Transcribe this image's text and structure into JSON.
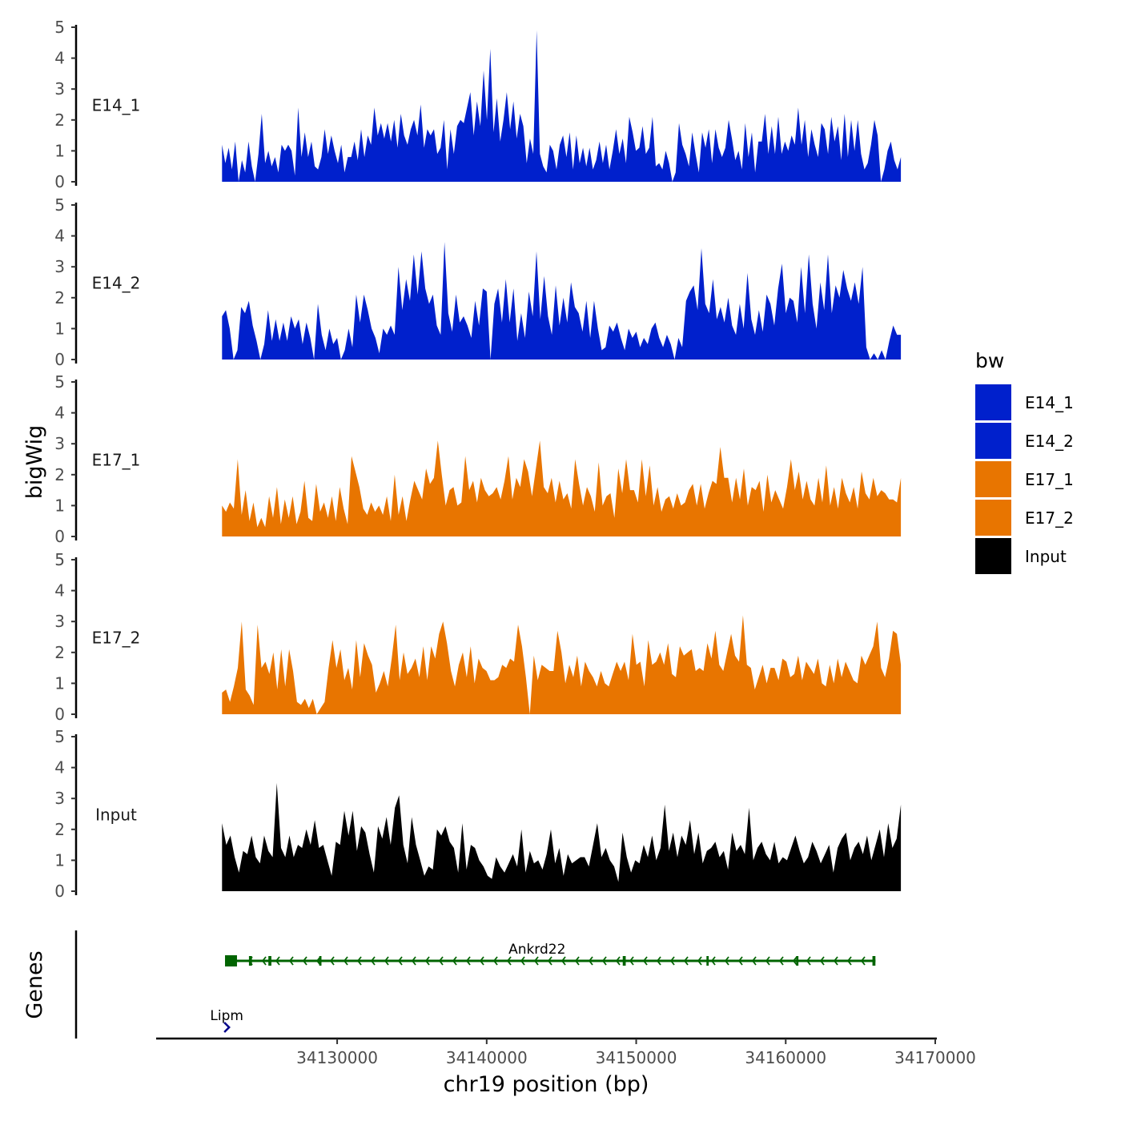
{
  "chart_data": {
    "type": "area",
    "title": "",
    "ylabel": "bigWig",
    "xlabel": "chr19 position (bp)",
    "xlim": [
      34118000,
      34170000
    ],
    "x_ticks": [
      34130000,
      34140000,
      34150000,
      34160000,
      34170000
    ],
    "x_tick_labels": [
      "34130000",
      "34140000",
      "34150000",
      "34160000",
      "34170000"
    ],
    "ylim": [
      0,
      5
    ],
    "y_ticks": [
      0,
      1,
      2,
      3,
      4,
      5
    ],
    "y_tick_labels": [
      "0",
      "1",
      "2",
      "3",
      "4",
      "5"
    ],
    "x_start": 34122300,
    "x_end": 34167700,
    "legend_title": "bw",
    "legend": [
      {
        "label": "E14_1",
        "color": "#0020CC"
      },
      {
        "label": "E14_2",
        "color": "#0020CC"
      },
      {
        "label": "E17_1",
        "color": "#E87500"
      },
      {
        "label": "E17_2",
        "color": "#E87500"
      },
      {
        "label": "Input",
        "color": "#000000"
      }
    ],
    "series": [
      {
        "name": "E14_1",
        "color": "#0020CC",
        "values": [
          1.2,
          0.6,
          1.1,
          0.4,
          1.3,
          0.0,
          0.7,
          0.3,
          1.3,
          0.5,
          0.0,
          0.9,
          2.2,
          0.6,
          1.0,
          0.5,
          0.8,
          0.3,
          1.2,
          1.0,
          1.2,
          1.0,
          0.2,
          2.4,
          0.8,
          1.6,
          0.8,
          1.3,
          0.5,
          0.4,
          0.8,
          1.7,
          0.9,
          1.5,
          1.0,
          0.6,
          1.2,
          0.3,
          0.8,
          0.8,
          1.3,
          0.7,
          1.7,
          0.8,
          1.5,
          1.2,
          2.4,
          1.5,
          1.9,
          1.4,
          1.9,
          1.3,
          2.0,
          1.1,
          2.2,
          1.5,
          1.2,
          1.7,
          2.0,
          1.5,
          2.5,
          1.1,
          1.7,
          1.5,
          1.7,
          0.9,
          1.1,
          2.0,
          0.4,
          1.7,
          0.9,
          1.8,
          2.0,
          1.9,
          2.4,
          2.9,
          1.5,
          2.6,
          1.8,
          3.6,
          2.0,
          4.3,
          1.6,
          2.7,
          1.3,
          2.0,
          2.9,
          1.7,
          2.6,
          1.4,
          2.2,
          1.8,
          0.6,
          1.4,
          0.9,
          4.9,
          0.9,
          0.5,
          0.3,
          1.2,
          1.0,
          0.4,
          1.2,
          1.5,
          0.8,
          1.6,
          0.4,
          1.5,
          0.6,
          1.1,
          0.5,
          1.1,
          0.4,
          0.7,
          1.3,
          0.6,
          1.2,
          0.4,
          1.0,
          1.7,
          0.9,
          1.4,
          0.6,
          2.1,
          1.6,
          1.0,
          1.1,
          1.8,
          0.9,
          1.1,
          2.1,
          0.5,
          0.6,
          0.4,
          1.0,
          0.6,
          0.0,
          0.3,
          1.9,
          1.2,
          0.9,
          0.5,
          1.6,
          0.9,
          0.3,
          1.6,
          1.1,
          1.7,
          0.6,
          1.7,
          1.1,
          0.8,
          1.1,
          2.0,
          1.4,
          0.7,
          1.0,
          0.4,
          1.9,
          0.8,
          1.6,
          0.3,
          1.3,
          1.3,
          2.2,
          0.9,
          1.8,
          0.9,
          2.1,
          0.9,
          1.3,
          1.0,
          1.5,
          1.2,
          2.4,
          1.2,
          2.0,
          0.8,
          1.7,
          1.2,
          0.8,
          1.9,
          1.7,
          0.9,
          2.1,
          1.3,
          1.8,
          0.7,
          2.2,
          0.8,
          2.0,
          1.0,
          2.0,
          0.9,
          0.4,
          0.6,
          1.2,
          2.0,
          1.5,
          0.0,
          0.4,
          1.0,
          1.3,
          0.7,
          0.4,
          0.8
        ]
      },
      {
        "name": "E14_2",
        "color": "#0020CC",
        "values": [
          1.4,
          1.6,
          1.0,
          0.0,
          0.3,
          1.7,
          1.5,
          1.9,
          1.1,
          0.6,
          0.0,
          0.5,
          1.6,
          0.6,
          1.3,
          0.6,
          1.2,
          0.6,
          1.4,
          1.0,
          1.3,
          0.5,
          1.2,
          0.7,
          0.0,
          1.8,
          0.8,
          0.3,
          1.0,
          0.5,
          0.7,
          0.0,
          0.3,
          1.0,
          0.4,
          2.1,
          1.2,
          2.1,
          1.6,
          1.0,
          0.7,
          0.2,
          1.0,
          0.8,
          1.1,
          0.8,
          3.0,
          1.6,
          2.6,
          1.9,
          3.4,
          2.1,
          3.5,
          2.3,
          1.8,
          2.1,
          1.1,
          0.8,
          3.8,
          1.5,
          0.9,
          2.1,
          1.2,
          1.4,
          1.1,
          0.7,
          1.9,
          1.1,
          2.3,
          2.2,
          0.0,
          1.8,
          2.3,
          1.2,
          2.6,
          1.2,
          2.3,
          0.6,
          1.5,
          0.7,
          2.2,
          1.4,
          3.5,
          1.3,
          2.7,
          1.4,
          0.8,
          2.4,
          1.1,
          2.0,
          1.2,
          2.5,
          1.7,
          1.5,
          0.9,
          1.9,
          0.7,
          1.9,
          1.0,
          0.3,
          0.4,
          1.1,
          0.9,
          1.2,
          0.7,
          0.3,
          1.0,
          0.7,
          0.9,
          0.4,
          0.7,
          0.5,
          1.0,
          1.2,
          0.7,
          0.4,
          0.8,
          0.5,
          0.0,
          0.7,
          0.4,
          1.9,
          2.2,
          2.4,
          1.6,
          3.6,
          1.8,
          1.5,
          2.6,
          1.3,
          1.7,
          1.2,
          2.0,
          1.1,
          0.8,
          1.8,
          1.0,
          2.8,
          1.3,
          0.8,
          1.6,
          0.9,
          2.1,
          1.8,
          1.1,
          2.3,
          3.1,
          1.5,
          2.0,
          1.9,
          1.2,
          3.0,
          1.5,
          3.4,
          1.8,
          1.0,
          2.5,
          1.6,
          3.4,
          1.5,
          2.4,
          2.0,
          2.9,
          2.3,
          1.9,
          2.5,
          1.8,
          3.0,
          0.4,
          0.0,
          0.2,
          0.0,
          0.3,
          0.0,
          0.6,
          1.1,
          0.8,
          0.8
        ]
      },
      {
        "name": "E17_1",
        "color": "#E87500",
        "values": [
          1.0,
          0.8,
          1.1,
          0.9,
          2.5,
          0.7,
          1.5,
          0.5,
          1.1,
          0.3,
          0.6,
          0.3,
          1.3,
          0.6,
          1.6,
          0.4,
          1.2,
          0.6,
          1.3,
          0.4,
          0.8,
          1.8,
          0.6,
          0.5,
          1.7,
          0.8,
          1.1,
          0.6,
          1.3,
          0.5,
          1.6,
          0.9,
          0.4,
          2.6,
          2.1,
          1.6,
          0.9,
          0.7,
          1.1,
          0.8,
          1.0,
          0.7,
          1.3,
          0.5,
          2.0,
          0.7,
          1.3,
          0.5,
          1.2,
          1.8,
          1.5,
          1.2,
          2.2,
          1.7,
          1.9,
          3.1,
          2.0,
          1.0,
          1.5,
          1.6,
          1.0,
          1.1,
          2.6,
          1.5,
          1.8,
          1.1,
          1.9,
          1.5,
          1.3,
          1.4,
          1.6,
          1.2,
          1.8,
          2.6,
          1.2,
          1.9,
          1.6,
          2.5,
          2.1,
          1.3,
          2.2,
          3.1,
          1.6,
          1.4,
          1.9,
          1.1,
          1.8,
          1.2,
          1.4,
          0.9,
          2.5,
          1.7,
          1.0,
          1.6,
          1.3,
          0.8,
          2.4,
          1.0,
          1.3,
          1.4,
          0.6,
          2.2,
          1.4,
          2.5,
          1.5,
          1.5,
          1.1,
          2.5,
          1.3,
          2.3,
          1.0,
          1.6,
          0.8,
          1.2,
          1.3,
          0.9,
          1.4,
          1.0,
          1.1,
          1.5,
          1.7,
          1.0,
          1.7,
          0.9,
          1.4,
          1.8,
          1.7,
          2.9,
          1.9,
          1.9,
          1.1,
          1.9,
          1.2,
          2.2,
          1.0,
          1.6,
          1.5,
          1.8,
          0.8,
          2.0,
          1.1,
          1.5,
          1.2,
          0.9,
          1.6,
          2.5,
          1.5,
          2.1,
          1.2,
          1.8,
          1.2,
          1.0,
          1.9,
          1.1,
          2.3,
          1.0,
          1.6,
          0.9,
          1.9,
          1.4,
          1.1,
          1.6,
          0.9,
          2.1,
          1.4,
          1.2,
          1.9,
          1.3,
          1.5,
          1.4,
          1.2,
          1.2,
          1.1,
          1.9
        ]
      },
      {
        "name": "E17_2",
        "color": "#E87500",
        "values": [
          0.7,
          0.8,
          0.4,
          0.9,
          1.5,
          3.0,
          0.8,
          0.6,
          0.3,
          2.9,
          1.5,
          1.7,
          1.3,
          2.0,
          0.8,
          2.1,
          0.9,
          2.1,
          1.4,
          0.4,
          0.3,
          0.5,
          0.2,
          0.5,
          0.0,
          0.2,
          0.4,
          1.5,
          2.4,
          1.5,
          2.1,
          1.1,
          1.5,
          0.8,
          2.4,
          1.2,
          2.3,
          1.9,
          1.6,
          0.7,
          1.0,
          1.4,
          0.9,
          1.8,
          2.9,
          1.1,
          2.0,
          1.3,
          1.5,
          1.8,
          1.2,
          2.2,
          1.1,
          2.2,
          1.8,
          2.6,
          3.0,
          2.3,
          1.4,
          0.9,
          1.6,
          2.0,
          1.2,
          2.2,
          1.0,
          1.8,
          1.5,
          1.4,
          1.1,
          1.1,
          1.2,
          1.6,
          1.5,
          1.8,
          1.7,
          2.9,
          2.2,
          1.2,
          0.0,
          1.9,
          1.1,
          1.6,
          1.5,
          1.4,
          1.4,
          2.7,
          2.0,
          1.0,
          1.6,
          1.2,
          1.9,
          0.9,
          1.7,
          1.4,
          1.2,
          0.9,
          1.4,
          1.0,
          0.9,
          1.3,
          1.7,
          1.4,
          1.7,
          1.1,
          2.6,
          1.6,
          1.7,
          0.9,
          2.4,
          1.6,
          1.7,
          2.0,
          1.6,
          2.3,
          1.3,
          1.2,
          2.2,
          1.9,
          2.0,
          2.1,
          1.4,
          1.5,
          1.4,
          2.3,
          1.8,
          2.7,
          1.6,
          1.4,
          2.0,
          2.6,
          1.9,
          1.7,
          3.2,
          1.6,
          1.5,
          0.8,
          1.2,
          1.6,
          1.0,
          1.5,
          1.5,
          1.1,
          1.8,
          1.7,
          1.2,
          1.3,
          1.9,
          1.1,
          1.7,
          1.5,
          1.3,
          1.8,
          1.0,
          0.9,
          1.6,
          1.0,
          1.8,
          1.2,
          1.7,
          1.4,
          1.1,
          1.0,
          1.9,
          1.6,
          1.9,
          2.2,
          3.0,
          1.5,
          1.2,
          1.8,
          2.7,
          2.6,
          1.6
        ]
      },
      {
        "name": "Input",
        "color": "#000000",
        "values": [
          2.2,
          1.5,
          1.8,
          1.1,
          0.6,
          1.3,
          1.2,
          1.8,
          1.1,
          0.9,
          1.8,
          1.3,
          1.1,
          3.5,
          1.4,
          1.1,
          1.8,
          1.1,
          1.5,
          1.4,
          2.0,
          1.5,
          2.3,
          1.4,
          1.5,
          1.0,
          0.5,
          1.6,
          1.5,
          2.6,
          1.8,
          2.6,
          1.3,
          2.1,
          1.9,
          1.2,
          0.6,
          2.1,
          1.7,
          2.4,
          1.5,
          2.7,
          3.1,
          1.5,
          0.9,
          2.4,
          1.5,
          1.0,
          0.5,
          0.8,
          0.7,
          2.0,
          1.8,
          2.1,
          1.6,
          1.4,
          0.6,
          2.2,
          0.7,
          1.5,
          1.4,
          1.0,
          0.8,
          0.5,
          0.4,
          1.1,
          0.8,
          0.6,
          0.9,
          1.2,
          0.8,
          2.0,
          0.6,
          1.3,
          0.9,
          1.0,
          0.7,
          1.2,
          2.0,
          0.9,
          1.4,
          0.5,
          1.2,
          0.9,
          1.0,
          1.1,
          1.1,
          0.8,
          1.5,
          2.2,
          1.1,
          1.4,
          1.0,
          0.8,
          0.3,
          1.9,
          1.1,
          0.6,
          1.0,
          0.9,
          1.5,
          1.1,
          1.8,
          1.0,
          1.4,
          2.8,
          1.3,
          1.9,
          1.1,
          1.8,
          1.5,
          2.3,
          1.2,
          1.9,
          0.9,
          1.3,
          1.4,
          1.6,
          1.1,
          1.3,
          0.7,
          1.9,
          1.3,
          1.5,
          1.2,
          2.7,
          1.0,
          1.4,
          1.6,
          1.2,
          1.0,
          1.6,
          0.9,
          1.1,
          1.0,
          1.4,
          1.8,
          1.3,
          0.9,
          1.1,
          1.6,
          1.3,
          0.9,
          1.2,
          1.5,
          0.6,
          1.4,
          1.7,
          1.9,
          1.0,
          1.4,
          1.6,
          1.2,
          1.8,
          1.0,
          1.5,
          2.0,
          1.1,
          2.2,
          1.4,
          1.7,
          2.8
        ]
      }
    ],
    "genes_track_label": "Genes",
    "genes": [
      {
        "name": "Ankrd22",
        "start": 34122500,
        "end": 34166000,
        "strand": "-",
        "color": "#006400",
        "exons": [
          [
            34122500,
            34123300
          ],
          [
            34124100,
            34124300
          ],
          [
            34125400,
            34125600
          ],
          [
            34128800,
            34128950
          ],
          [
            34149100,
            34149300
          ],
          [
            34154700,
            34154850
          ],
          [
            34160700,
            34160850
          ],
          [
            34165800,
            34166000
          ]
        ]
      },
      {
        "name": "Lipm",
        "start": 34122400,
        "end": 34122700,
        "strand": "+",
        "color": "#00008B",
        "exons": []
      }
    ]
  }
}
